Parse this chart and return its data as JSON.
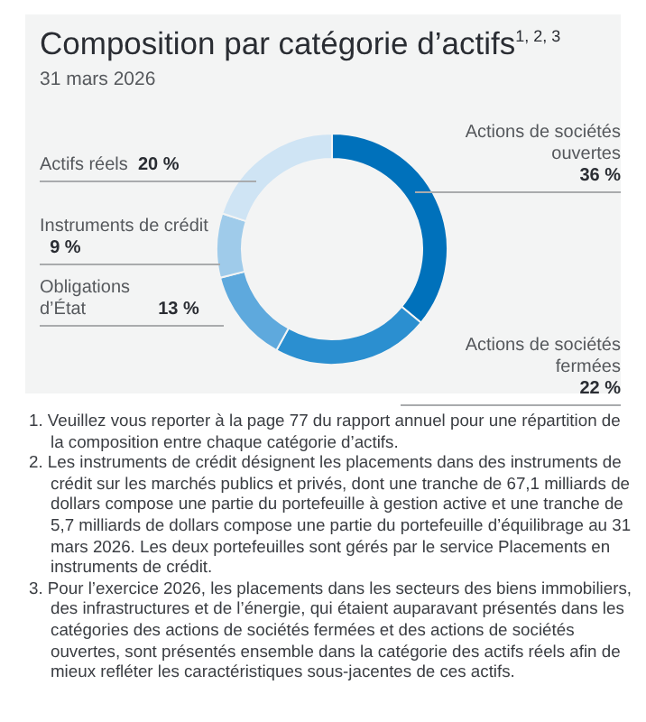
{
  "chart_data": {
    "type": "donut",
    "title": "Composition par catégorie d’actifs$^{1, 2, 3}$",
    "subtitle": "31 mars 2026",
    "categories": [
      "Actions de sociétés ouvertes",
      "Actions de sociétés fermées",
      "Obligations d’État",
      "Instruments de crédit",
      "Actifs réels"
    ],
    "values": [
      36,
      22,
      13,
      9,
      20
    ],
    "value_labels": [
      "36 %",
      "22 %",
      "13 %",
      "9 %",
      "20 %"
    ],
    "colors": [
      "#0071bb",
      "#2b8fd0",
      "#5ea9dd",
      "#9fcbea",
      "#cfe4f4"
    ],
    "legend": false,
    "annotations": [
      "1. Veuillez vous reporter à la page 77 du rapport annuel pour une répartition de la composition entre chaque catégorie d’actifs.",
      "2. Les instruments de crédit désignent les placements dans des instruments de crédit sur les marchés publics et privés, dont une tranche de 67,1 milliards de dollars compose une partie du portefeuille à gestion active et une tranche de 5,7 milliards de dollars compose une partie du portefeuille d’équilibrage au 31 mars 2026. Les deux portefeuilles sont gérés par le service Placements en instruments de crédit.",
      "3. Pour l’exercice 2026, les placements dans les secteurs des biens immobiliers, des infrastructures et de l’énergie, qui étaient auparavant présentés dans les catégories des actions de sociétés fermées et des actions de sociétés ouvertes, sont présentés ensemble dans la catégorie des actifs réels afin de mieux refléter les caractéristiques sous-jacentes de ces actifs."
    ]
  }
}
